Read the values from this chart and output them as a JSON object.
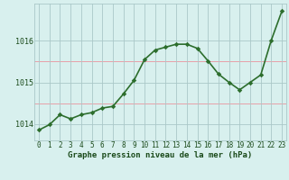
{
  "x": [
    0,
    1,
    2,
    3,
    4,
    5,
    6,
    7,
    8,
    9,
    10,
    11,
    12,
    13,
    14,
    15,
    16,
    17,
    18,
    19,
    20,
    21,
    22,
    23
  ],
  "y": [
    1013.85,
    1013.98,
    1014.22,
    1014.12,
    1014.22,
    1014.27,
    1014.38,
    1014.42,
    1014.72,
    1015.05,
    1015.55,
    1015.78,
    1015.85,
    1015.92,
    1015.92,
    1015.82,
    1015.52,
    1015.2,
    1015.0,
    1014.82,
    1015.0,
    1015.18,
    1016.02,
    1016.72
  ],
  "line_color": "#2d6e2d",
  "marker_color": "#2d6e2d",
  "bg_color": "#d8f0ee",
  "grid_color": "#aac8c8",
  "pink_line_color": "#e8a0a8",
  "xlabel": "Graphe pression niveau de la mer (hPa)",
  "tick_color": "#1a4a1a",
  "yticks": [
    1014,
    1015,
    1016
  ],
  "pink_yticks": [
    1014.5,
    1015.5
  ],
  "ylim": [
    1013.6,
    1016.9
  ],
  "xlim": [
    0,
    23
  ],
  "marker_size": 2.8,
  "line_width": 1.2,
  "tick_fontsize": 5.5,
  "xlabel_fontsize": 6.5
}
